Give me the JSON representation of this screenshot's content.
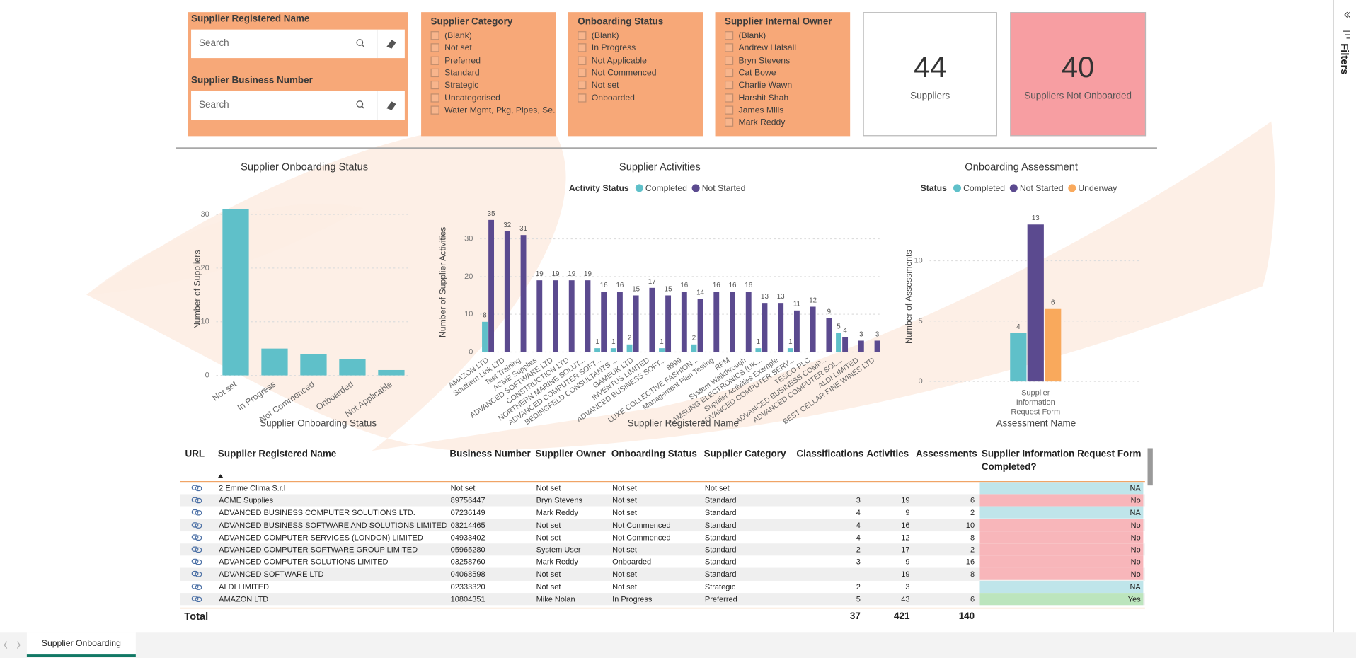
{
  "slicers": [
    {
      "title": "Supplier Registered Name",
      "placeholder": "Search"
    },
    {
      "title": "Supplier Business Number",
      "placeholder": "Search"
    },
    {
      "title": "Supplier Category",
      "items": [
        "(Blank)",
        "Not set",
        "Preferred",
        "Standard",
        "Strategic",
        "Uncategorised",
        "Water Mgmt, Pkg, Pipes, Se..."
      ]
    },
    {
      "title": "Onboarding Status",
      "items": [
        "(Blank)",
        "In Progress",
        "Not Applicable",
        "Not Commenced",
        "Not set",
        "Onboarded"
      ]
    },
    {
      "title": "Supplier Internal Owner",
      "items": [
        "(Blank)",
        "Andrew Halsall",
        "Bryn Stevens",
        "Cat Bowe",
        "Charlie Wawn",
        "Harshit Shah",
        "James Mills",
        "Mark Reddy"
      ]
    }
  ],
  "cards": [
    {
      "value": 44,
      "label": "Suppliers",
      "color": "#ffffff"
    },
    {
      "value": 40,
      "label": "Suppliers Not Onboarded",
      "color": "#f79ea2"
    }
  ],
  "chart_data": [
    {
      "type": "bar",
      "title": "Supplier Onboarding Status",
      "x_label": "Supplier Onboarding Status",
      "y_label": "Number of Suppliers",
      "categories": [
        "Not set",
        "In Progress",
        "Not Commenced",
        "Onboarded",
        "Not Applicable"
      ],
      "values": [
        31,
        5,
        4,
        3,
        1
      ],
      "color": "#5fc0c9",
      "ylim": [
        0,
        32
      ],
      "yticks": [
        0,
        10,
        20,
        30
      ],
      "grid": true,
      "data_labels": false
    },
    {
      "type": "bar",
      "title": "Supplier Activities",
      "x_label": "Supplier Registered Name",
      "y_label": "Number of Supplier Activities",
      "legend_title": "Activity Status",
      "categories": [
        "AMAZON LTD",
        "Southern Link LTD",
        "Test Training",
        "ACME Supplies",
        "ADVANCED SOFTWARE LTD",
        "CONSTRUCTION LTD",
        "NORTHERN MARINE SOLUT...",
        "ADVANCED COMPUTER SOFT...",
        "BEDINGFELD CONSULTANTS ...",
        "GAMEUK LTD",
        "INVENTUS LIMITED",
        "ADVANCED BUSINESS SOFT...",
        "8999",
        "LUXE COLLECTIVE FASHION...",
        "Management Plan Testing",
        "RPM",
        "System Walkthrough",
        "SAMSUNG ELECTRONICS (UK...",
        "Supplier Activities Example",
        "ADVANCED COMPUTER SERV...",
        "TESCO PLC",
        "ADVANCED BUSINESS COMP...",
        "ADVANCED COMPUTER SOL...",
        "ALDI LIMITED",
        "BEST CELLAR FINE WINES LTD"
      ],
      "series": [
        {
          "name": "Completed",
          "color": "#5fc0c9",
          "values": [
            8,
            null,
            null,
            null,
            null,
            null,
            null,
            1,
            1,
            2,
            null,
            1,
            null,
            2,
            null,
            null,
            null,
            1,
            null,
            1,
            null,
            null,
            5,
            null,
            null
          ]
        },
        {
          "name": "Not Started",
          "color": "#5b4a8f",
          "values": [
            35,
            32,
            31,
            19,
            19,
            19,
            19,
            16,
            16,
            15,
            17,
            15,
            16,
            14,
            16,
            16,
            16,
            13,
            13,
            11,
            12,
            9,
            4,
            3,
            3
          ]
        }
      ],
      "ylim": [
        0,
        37
      ],
      "yticks": [
        0,
        10,
        20,
        30
      ],
      "grid": true,
      "data_labels": true
    },
    {
      "type": "bar",
      "title": "Onboarding Assessment",
      "x_label": "Assessment Name",
      "y_label": "Number of Assessments",
      "legend_title": "Status",
      "categories": [
        "Supplier Information Request Form"
      ],
      "series": [
        {
          "name": "Completed",
          "color": "#5fc0c9",
          "values": [
            4
          ]
        },
        {
          "name": "Not Started",
          "color": "#5b4a8f",
          "values": [
            13
          ]
        },
        {
          "name": "Underway",
          "color": "#f9a95c",
          "values": [
            6
          ]
        }
      ],
      "ylim": [
        0,
        14
      ],
      "yticks": [
        0,
        5,
        10
      ],
      "grid": true,
      "data_labels": true
    }
  ],
  "table": {
    "columns": [
      "URL",
      "Supplier Registered Name",
      "Business Number",
      "Supplier Owner",
      "Onboarding Status",
      "Supplier Category",
      "Classifications",
      "Activities",
      "Assessments",
      "Supplier Information Request Form Completed?"
    ],
    "rows": [
      [
        "2 Emme Clima S.r.l",
        "Not set",
        "Not set",
        "Not set",
        "Not set",
        null,
        null,
        null,
        "NA"
      ],
      [
        "ACME Supplies",
        "89756447",
        "Bryn Stevens",
        "Not set",
        "Standard",
        3,
        19,
        6,
        "No"
      ],
      [
        "ADVANCED BUSINESS COMPUTER SOLUTIONS LTD.",
        "07236149",
        "Mark Reddy",
        "Not set",
        "Standard",
        4,
        9,
        2,
        "NA"
      ],
      [
        "ADVANCED BUSINESS SOFTWARE AND SOLUTIONS LIMITED",
        "03214465",
        "Not set",
        "Not Commenced",
        "Standard",
        4,
        16,
        10,
        "No"
      ],
      [
        "ADVANCED COMPUTER SERVICES (LONDON) LIMITED",
        "04933402",
        "Not set",
        "Not Commenced",
        "Standard",
        4,
        12,
        8,
        "No"
      ],
      [
        "ADVANCED COMPUTER SOFTWARE GROUP LIMITED",
        "05965280",
        "System User",
        "Not set",
        "Standard",
        2,
        17,
        2,
        "No"
      ],
      [
        "ADVANCED COMPUTER SOLUTIONS LIMITED",
        "03258760",
        "Mark Reddy",
        "Onboarded",
        "Standard",
        3,
        9,
        16,
        "No"
      ],
      [
        "ADVANCED SOFTWARE LTD",
        "04068598",
        "Not set",
        "Not set",
        "Standard",
        null,
        19,
        8,
        "No"
      ],
      [
        "ALDI LIMITED",
        "02333320",
        "Not set",
        "Not set",
        "Strategic",
        2,
        3,
        null,
        "NA"
      ],
      [
        "AMAZON LTD",
        "10804351",
        "Mike Nolan",
        "In Progress",
        "Preferred",
        5,
        43,
        6,
        "Yes"
      ]
    ],
    "completed_colors": {
      "NA": "#bfe5ea",
      "No": "#f8b6ba",
      "Yes": "#bce5bd"
    },
    "total": {
      "label": "Total",
      "classifications": 37,
      "activities": 421,
      "assessments": 140
    }
  },
  "tabs": [
    "Supplier Onboarding"
  ],
  "filters_pane": "Filters"
}
